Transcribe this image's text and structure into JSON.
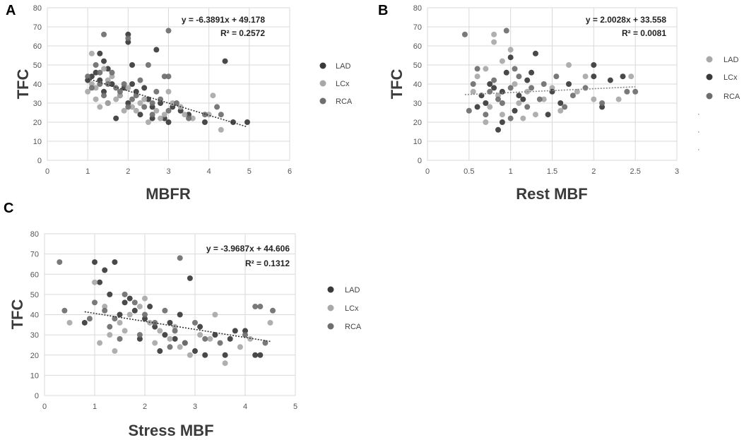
{
  "chart_data": [
    {
      "panel": "A",
      "type": "scatter",
      "xlabel": "MBFR",
      "ylabel": "TFC",
      "xlim": [
        0,
        6
      ],
      "ylim": [
        0,
        80
      ],
      "xticks": [
        0,
        1,
        2,
        3,
        4,
        5,
        6
      ],
      "yticks": [
        0,
        10,
        20,
        30,
        40,
        50,
        60,
        70,
        80
      ],
      "equation": "y = -6.3891x + 49.178",
      "r2": "R² = 0.2572",
      "trend": {
        "slope": -6.3891,
        "intercept": 49.178,
        "x_range": [
          1.0,
          4.95
        ]
      },
      "legend": [
        "LAD",
        "LCx",
        "RCA"
      ],
      "series_colors": {
        "LAD": "#3a3a3a",
        "LCx": "#a8a8a8",
        "RCA": "#6e6e6e"
      },
      "series": [
        {
          "name": "LAD",
          "points": [
            [
              1.3,
              56
            ],
            [
              1.4,
              52
            ],
            [
              2.0,
              66
            ],
            [
              2.0,
              62
            ],
            [
              2.1,
              50
            ],
            [
              1.5,
              48
            ],
            [
              2.7,
              58
            ],
            [
              4.4,
              52
            ],
            [
              4.95,
              20
            ],
            [
              4.6,
              20
            ],
            [
              3.9,
              20
            ],
            [
              3.0,
              20
            ],
            [
              2.9,
              22
            ],
            [
              2.6,
              22
            ],
            [
              1.7,
              22
            ],
            [
              2.3,
              24
            ],
            [
              1.2,
              46
            ],
            [
              1.1,
              44
            ],
            [
              1.6,
              40
            ],
            [
              2.2,
              36
            ],
            [
              2.5,
              32
            ],
            [
              3.1,
              28
            ],
            [
              3.3,
              26
            ],
            [
              2.0,
              30
            ],
            [
              1.4,
              36
            ],
            [
              1.8,
              34
            ],
            [
              2.8,
              30
            ],
            [
              1.0,
              42
            ],
            [
              1.5,
              30
            ],
            [
              2.4,
              38
            ],
            [
              3.5,
              24
            ],
            [
              1.3,
              42
            ],
            [
              2.1,
              40
            ],
            [
              2.6,
              28
            ],
            [
              1.9,
              38
            ]
          ]
        },
        {
          "name": "LCx",
          "points": [
            [
              1.1,
              56
            ],
            [
              1.0,
              36
            ],
            [
              1.2,
              32
            ],
            [
              1.5,
              30
            ],
            [
              1.8,
              34
            ],
            [
              2.2,
              26
            ],
            [
              2.5,
              20
            ],
            [
              3.1,
              30
            ],
            [
              3.6,
              22
            ],
            [
              4.1,
              34
            ],
            [
              4.3,
              16
            ],
            [
              4.0,
              24
            ],
            [
              3.3,
              28
            ],
            [
              2.9,
              24
            ],
            [
              1.4,
              48
            ],
            [
              1.6,
              44
            ],
            [
              2.0,
              38
            ],
            [
              2.4,
              32
            ],
            [
              1.3,
              28
            ],
            [
              1.9,
              26
            ],
            [
              2.7,
              26
            ],
            [
              3.0,
              36
            ],
            [
              1.1,
              40
            ],
            [
              1.7,
              32
            ],
            [
              2.3,
              30
            ],
            [
              2.8,
              22
            ],
            [
              3.4,
              24
            ],
            [
              1.2,
              38
            ],
            [
              2.1,
              28
            ],
            [
              1.5,
              42
            ]
          ]
        },
        {
          "name": "RCA",
          "points": [
            [
              1.4,
              66
            ],
            [
              2.0,
              64
            ],
            [
              3.0,
              68
            ],
            [
              1.3,
              46
            ],
            [
              1.0,
              44
            ],
            [
              1.2,
              50
            ],
            [
              1.5,
              40
            ],
            [
              1.8,
              36
            ],
            [
              2.1,
              32
            ],
            [
              2.4,
              28
            ],
            [
              2.6,
              30
            ],
            [
              3.0,
              26
            ],
            [
              3.5,
              22
            ],
            [
              4.2,
              28
            ],
            [
              3.9,
              24
            ],
            [
              4.3,
              24
            ],
            [
              2.9,
              44
            ],
            [
              3.0,
              44
            ],
            [
              2.3,
              42
            ],
            [
              2.5,
              50
            ],
            [
              1.6,
              46
            ],
            [
              1.1,
              38
            ],
            [
              1.9,
              40
            ],
            [
              2.2,
              34
            ],
            [
              2.7,
              36
            ],
            [
              3.2,
              30
            ],
            [
              1.4,
              34
            ],
            [
              2.0,
              28
            ],
            [
              2.6,
              24
            ],
            [
              1.7,
              38
            ],
            [
              1.3,
              40
            ],
            [
              2.8,
              32
            ]
          ]
        }
      ]
    },
    {
      "panel": "B",
      "type": "scatter",
      "xlabel": "Rest MBF",
      "ylabel": "TFC",
      "xlim": [
        0,
        3
      ],
      "ylim": [
        0,
        80
      ],
      "xticks": [
        0,
        0.5,
        1,
        1.5,
        2,
        2.5,
        3
      ],
      "yticks": [
        0,
        10,
        20,
        30,
        40,
        50,
        60,
        70,
        80
      ],
      "equation": "y = 2.0028x + 33.558",
      "r2": "R² = 0.0081",
      "trend": {
        "slope": 2.0028,
        "intercept": 33.558,
        "x_range": [
          0.45,
          2.5
        ]
      },
      "legend": [
        "LAD",
        "LCx",
        "RCA"
      ],
      "legend_dots": [
        "·",
        "·",
        "·"
      ],
      "series_colors": {
        "LAD": "#a8a8a8",
        "LCx": "#3a3a3a",
        "RCA": "#6e6e6e"
      },
      "series": [
        {
          "name": "LAD",
          "points": [
            [
              0.8,
              66
            ],
            [
              0.8,
              62
            ],
            [
              1.0,
              58
            ],
            [
              0.9,
              52
            ],
            [
              0.7,
              48
            ],
            [
              0.6,
              44
            ],
            [
              0.7,
              20
            ],
            [
              0.9,
              24
            ],
            [
              1.1,
              30
            ],
            [
              1.2,
              36
            ],
            [
              1.4,
              32
            ],
            [
              1.6,
              26
            ],
            [
              1.7,
              50
            ],
            [
              1.9,
              44
            ],
            [
              2.0,
              32
            ],
            [
              2.3,
              32
            ],
            [
              2.45,
              44
            ],
            [
              0.55,
              36
            ],
            [
              0.75,
              28
            ],
            [
              1.05,
              40
            ],
            [
              1.3,
              24
            ],
            [
              1.5,
              38
            ],
            [
              1.8,
              36
            ],
            [
              0.85,
              34
            ],
            [
              1.15,
              22
            ]
          ]
        },
        {
          "name": "LCx",
          "points": [
            [
              0.85,
              16
            ],
            [
              0.9,
              20
            ],
            [
              1.0,
              54
            ],
            [
              0.95,
              46
            ],
            [
              0.8,
              38
            ],
            [
              0.7,
              30
            ],
            [
              0.6,
              28
            ],
            [
              1.1,
              34
            ],
            [
              1.2,
              42
            ],
            [
              1.3,
              56
            ],
            [
              1.5,
              36
            ],
            [
              1.6,
              30
            ],
            [
              2.0,
              50
            ],
            [
              2.1,
              28
            ],
            [
              2.2,
              42
            ],
            [
              2.35,
              44
            ],
            [
              2.0,
              44
            ],
            [
              1.45,
              24
            ],
            [
              0.75,
              40
            ],
            [
              1.05,
              26
            ],
            [
              1.25,
              46
            ],
            [
              1.7,
              40
            ],
            [
              0.65,
              34
            ],
            [
              1.15,
              32
            ],
            [
              0.9,
              36
            ]
          ]
        },
        {
          "name": "RCA",
          "points": [
            [
              0.45,
              66
            ],
            [
              0.95,
              68
            ],
            [
              0.5,
              26
            ],
            [
              0.6,
              48
            ],
            [
              0.8,
              42
            ],
            [
              0.9,
              30
            ],
            [
              1.0,
              38
            ],
            [
              1.1,
              44
            ],
            [
              1.2,
              28
            ],
            [
              1.35,
              32
            ],
            [
              1.55,
              44
            ],
            [
              1.75,
              34
            ],
            [
              1.9,
              38
            ],
            [
              2.1,
              30
            ],
            [
              2.4,
              36
            ],
            [
              2.5,
              36
            ],
            [
              1.0,
              22
            ],
            [
              0.7,
              24
            ],
            [
              0.55,
              40
            ],
            [
              1.4,
              40
            ],
            [
              1.65,
              28
            ],
            [
              0.85,
              32
            ],
            [
              1.25,
              38
            ],
            [
              1.05,
              48
            ],
            [
              0.75,
              36
            ]
          ]
        }
      ]
    },
    {
      "panel": "C",
      "type": "scatter",
      "xlabel": "Stress MBF",
      "ylabel": "TFC",
      "xlim": [
        0,
        5
      ],
      "ylim": [
        0,
        80
      ],
      "xticks": [
        0,
        1,
        2,
        3,
        4,
        5
      ],
      "yticks": [
        0,
        10,
        20,
        30,
        40,
        50,
        60,
        70,
        80
      ],
      "equation": "y = -3.9687x + 44.606",
      "r2": "R² = 0.1312",
      "trend": {
        "slope": -3.9687,
        "intercept": 44.606,
        "x_range": [
          0.8,
          4.5
        ]
      },
      "legend": [
        "LAD",
        "LCx",
        "RCA"
      ],
      "series_colors": {
        "LAD": "#3a3a3a",
        "LCx": "#a8a8a8",
        "RCA": "#6e6e6e"
      },
      "series": [
        {
          "name": "LAD",
          "points": [
            [
              1.0,
              66
            ],
            [
              1.4,
              66
            ],
            [
              1.2,
              62
            ],
            [
              2.9,
              58
            ],
            [
              3.0,
              22
            ],
            [
              3.2,
              20
            ],
            [
              3.6,
              20
            ],
            [
              4.2,
              20
            ],
            [
              4.3,
              20
            ],
            [
              4.0,
              32
            ],
            [
              3.8,
              32
            ],
            [
              1.1,
              56
            ],
            [
              1.3,
              50
            ],
            [
              1.6,
              46
            ],
            [
              1.8,
              42
            ],
            [
              2.0,
              38
            ],
            [
              2.2,
              34
            ],
            [
              2.4,
              30
            ],
            [
              2.6,
              28
            ],
            [
              2.8,
              26
            ],
            [
              3.4,
              30
            ],
            [
              3.7,
              28
            ],
            [
              0.8,
              36
            ],
            [
              1.5,
              40
            ],
            [
              2.1,
              44
            ],
            [
              2.5,
              36
            ],
            [
              1.9,
              28
            ],
            [
              2.3,
              22
            ],
            [
              1.7,
              48
            ],
            [
              2.7,
              40
            ],
            [
              3.1,
              34
            ]
          ]
        },
        {
          "name": "LCx",
          "points": [
            [
              1.0,
              56
            ],
            [
              1.1,
              26
            ],
            [
              1.3,
              30
            ],
            [
              1.5,
              36
            ],
            [
              1.7,
              40
            ],
            [
              1.9,
              44
            ],
            [
              2.1,
              36
            ],
            [
              2.3,
              32
            ],
            [
              2.5,
              28
            ],
            [
              2.7,
              24
            ],
            [
              2.9,
              20
            ],
            [
              3.1,
              30
            ],
            [
              3.3,
              28
            ],
            [
              3.6,
              16
            ],
            [
              3.9,
              24
            ],
            [
              4.1,
              28
            ],
            [
              4.5,
              36
            ],
            [
              0.5,
              36
            ],
            [
              1.4,
              22
            ],
            [
              2.0,
              48
            ],
            [
              2.6,
              34
            ],
            [
              3.4,
              40
            ],
            [
              1.6,
              32
            ],
            [
              2.2,
              26
            ],
            [
              1.2,
              44
            ]
          ]
        },
        {
          "name": "RCA",
          "points": [
            [
              0.3,
              66
            ],
            [
              0.4,
              42
            ],
            [
              2.7,
              68
            ],
            [
              1.0,
              46
            ],
            [
              1.2,
              42
            ],
            [
              1.4,
              38
            ],
            [
              1.6,
              50
            ],
            [
              1.8,
              46
            ],
            [
              2.0,
              40
            ],
            [
              2.2,
              36
            ],
            [
              2.4,
              42
            ],
            [
              2.6,
              32
            ],
            [
              2.8,
              26
            ],
            [
              3.0,
              36
            ],
            [
              3.2,
              28
            ],
            [
              3.5,
              26
            ],
            [
              4.0,
              30
            ],
            [
              4.2,
              44
            ],
            [
              4.3,
              44
            ],
            [
              4.55,
              42
            ],
            [
              4.4,
              26
            ],
            [
              1.3,
              34
            ],
            [
              1.9,
              30
            ],
            [
              2.5,
              24
            ],
            [
              0.9,
              38
            ],
            [
              1.5,
              28
            ]
          ]
        }
      ]
    }
  ]
}
